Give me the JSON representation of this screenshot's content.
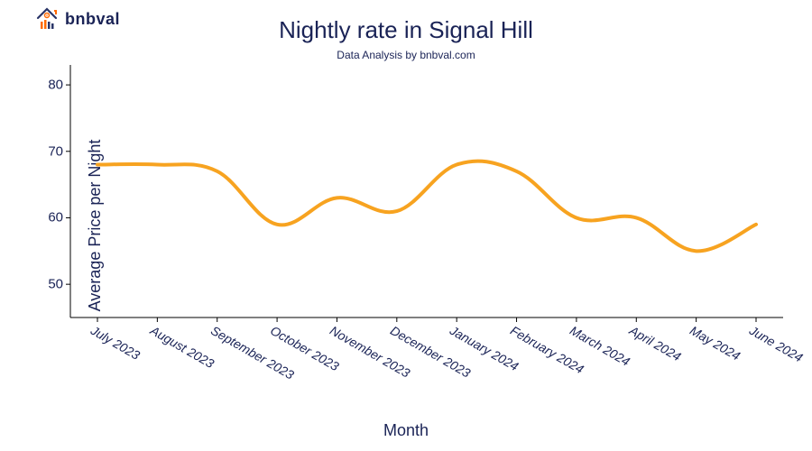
{
  "logo": {
    "text": "bnbval",
    "house_color": "#2a3568",
    "roof_color": "#ff6a00",
    "bar_colors": [
      "#ff6a00",
      "#ff6a00",
      "#2a3568",
      "#2a3568"
    ]
  },
  "chart": {
    "type": "line",
    "title": "Nightly rate in Signal Hill",
    "title_fontsize": 26,
    "subtitle": "Data Analysis by bnbval.com",
    "subtitle_fontsize": 12,
    "xlabel": "Month",
    "ylabel": "Average Price per Night",
    "label_fontsize": 18,
    "text_color": "#1a2356",
    "background_color": "#ffffff",
    "line_color": "#f7a320",
    "line_width": 4,
    "ylim": [
      45,
      83
    ],
    "yticks": [
      50,
      60,
      70,
      80
    ],
    "ytick_fontsize": 15,
    "xtick_fontsize": 14,
    "xtick_rotation": 30,
    "categories": [
      "July 2023",
      "August 2023",
      "September 2023",
      "October 2023",
      "November 2023",
      "December 2023",
      "January 2024",
      "February 2024",
      "March 2024",
      "April 2024",
      "May 2024",
      "June 2024"
    ],
    "values": [
      68,
      68,
      67,
      59,
      63,
      61,
      68,
      67,
      60,
      60,
      55,
      59
    ],
    "smooth": true
  }
}
